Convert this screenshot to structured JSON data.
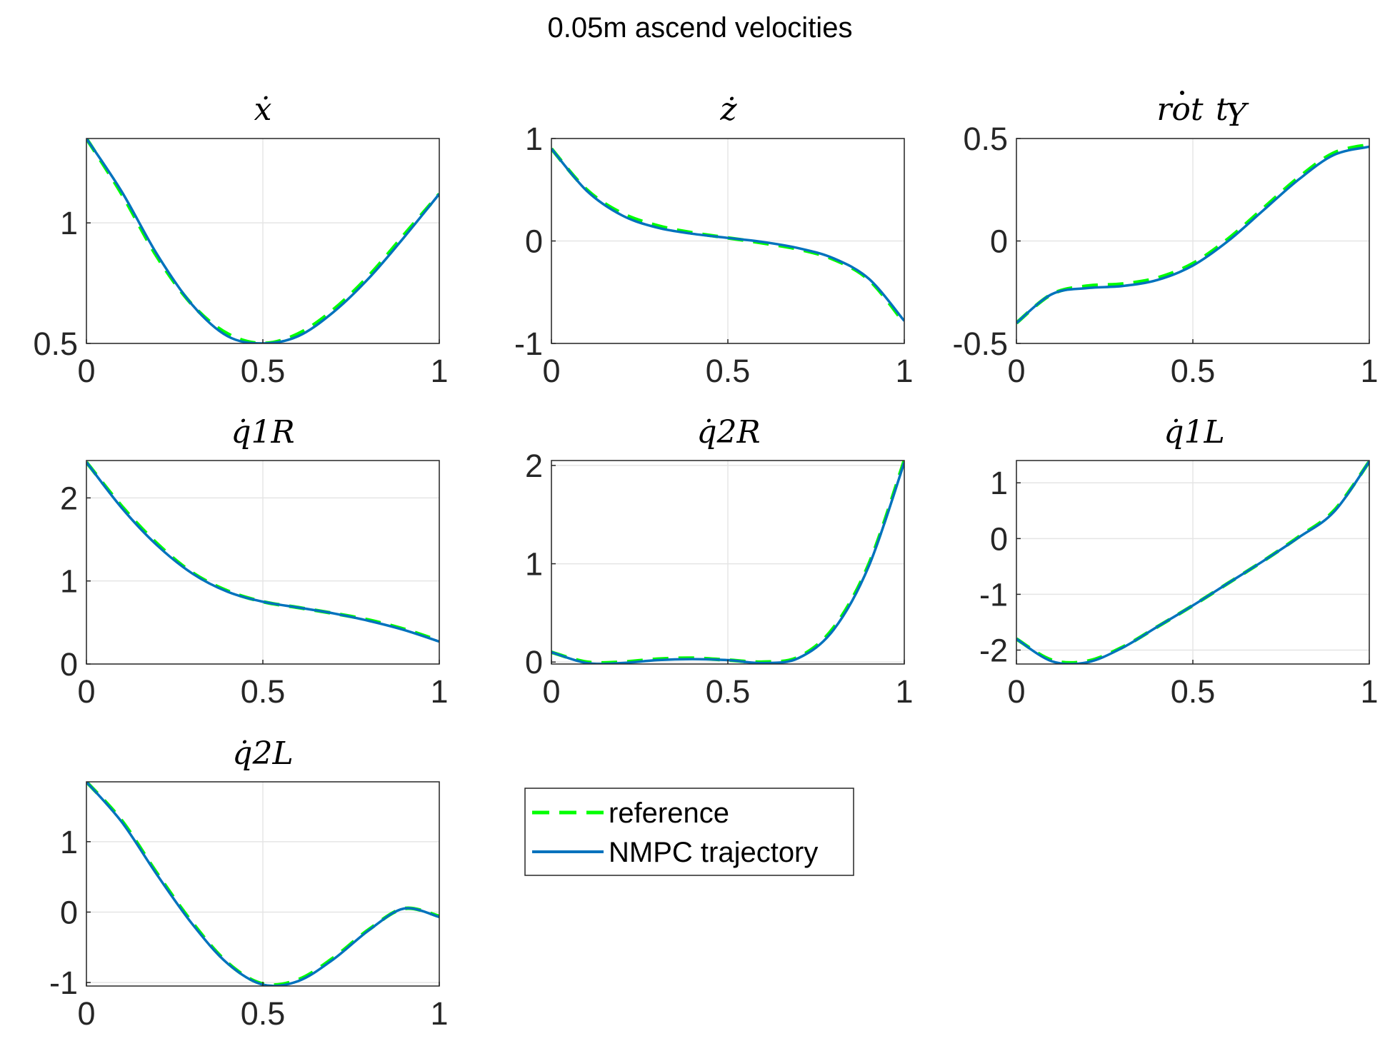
{
  "figure": {
    "suptitle": "0.05m ascend velocities",
    "legend": {
      "placement": "below-middle",
      "entries": [
        "reference",
        "NMPC trajectory"
      ]
    },
    "colors": {
      "reference": "#00ff00",
      "nmpc": "#0072bd",
      "grid": "#e5e5e5",
      "axis": "#262626"
    }
  },
  "chart_data": [
    {
      "type": "line",
      "title": "ẋ",
      "xlim": [
        0,
        1
      ],
      "ylim": [
        0.5,
        1.35
      ],
      "grid": true,
      "xticks": [
        "0",
        "0.5",
        "1"
      ],
      "yticks": [
        "0.5",
        "1"
      ],
      "x": [
        0,
        0.1,
        0.2,
        0.3,
        0.4,
        0.5,
        0.6,
        0.7,
        0.8,
        0.9,
        1.0
      ],
      "series": [
        {
          "name": "reference",
          "values": [
            1.35,
            1.12,
            0.86,
            0.66,
            0.54,
            0.5,
            0.54,
            0.64,
            0.78,
            0.95,
            1.12
          ]
        },
        {
          "name": "NMPC trajectory",
          "values": [
            1.35,
            1.13,
            0.87,
            0.66,
            0.53,
            0.5,
            0.53,
            0.63,
            0.77,
            0.94,
            1.12
          ]
        }
      ]
    },
    {
      "type": "line",
      "title": "ż",
      "xlim": [
        0,
        1
      ],
      "ylim": [
        -1,
        1
      ],
      "grid": true,
      "xticks": [
        "0",
        "0.5",
        "1"
      ],
      "yticks": [
        "-1",
        "0",
        "1"
      ],
      "x": [
        0,
        0.1,
        0.2,
        0.3,
        0.4,
        0.5,
        0.6,
        0.7,
        0.8,
        0.9,
        1.0
      ],
      "series": [
        {
          "name": "reference",
          "values": [
            0.9,
            0.5,
            0.27,
            0.15,
            0.08,
            0.03,
            -0.02,
            -0.08,
            -0.18,
            -0.38,
            -0.8
          ]
        },
        {
          "name": "NMPC trajectory",
          "values": [
            0.9,
            0.49,
            0.25,
            0.13,
            0.07,
            0.03,
            -0.01,
            -0.07,
            -0.17,
            -0.37,
            -0.78
          ]
        }
      ]
    },
    {
      "type": "line",
      "title": "rot",
      "xlim": [
        0,
        1
      ],
      "ylim": [
        -0.5,
        0.5
      ],
      "grid": true,
      "xticks": [
        "0",
        "0.5",
        "1"
      ],
      "yticks": [
        "-0.5",
        "0",
        "0.5"
      ],
      "x": [
        0,
        0.1,
        0.2,
        0.3,
        0.4,
        0.5,
        0.6,
        0.7,
        0.8,
        0.9,
        1.0
      ],
      "series": [
        {
          "name": "reference",
          "values": [
            -0.4,
            -0.26,
            -0.22,
            -0.21,
            -0.18,
            -0.11,
            0.01,
            0.16,
            0.31,
            0.43,
            0.47
          ]
        },
        {
          "name": "NMPC trajectory",
          "values": [
            -0.4,
            -0.26,
            -0.23,
            -0.22,
            -0.19,
            -0.12,
            0.0,
            0.15,
            0.3,
            0.42,
            0.46
          ]
        }
      ]
    },
    {
      "type": "line",
      "title": "q̇1R",
      "xlim": [
        0,
        1
      ],
      "ylim": [
        0,
        2.45
      ],
      "grid": true,
      "xticks": [
        "0",
        "0.5",
        "1"
      ],
      "yticks": [
        "0",
        "1",
        "2"
      ],
      "x": [
        0,
        0.1,
        0.2,
        0.3,
        0.4,
        0.5,
        0.6,
        0.7,
        0.8,
        0.9,
        1.0
      ],
      "series": [
        {
          "name": "reference",
          "values": [
            2.43,
            1.9,
            1.45,
            1.1,
            0.88,
            0.75,
            0.68,
            0.61,
            0.53,
            0.42,
            0.28
          ]
        },
        {
          "name": "NMPC trajectory",
          "values": [
            2.43,
            1.88,
            1.43,
            1.09,
            0.87,
            0.75,
            0.68,
            0.61,
            0.52,
            0.41,
            0.27
          ]
        }
      ]
    },
    {
      "type": "line",
      "title": "q̇2R",
      "xlim": [
        0,
        1
      ],
      "ylim": [
        -0.02,
        2.05
      ],
      "grid": true,
      "xticks": [
        "0",
        "0.5",
        "1"
      ],
      "yticks": [
        "0",
        "1",
        "2"
      ],
      "x": [
        0,
        0.1,
        0.2,
        0.3,
        0.4,
        0.5,
        0.6,
        0.7,
        0.8,
        0.9,
        1.0
      ],
      "series": [
        {
          "name": "reference",
          "values": [
            0.1,
            0.0,
            0.0,
            0.03,
            0.04,
            0.02,
            0.0,
            0.05,
            0.35,
            1.0,
            2.05
          ]
        },
        {
          "name": "NMPC trajectory",
          "values": [
            0.1,
            -0.01,
            -0.01,
            0.02,
            0.03,
            0.02,
            -0.01,
            0.04,
            0.33,
            0.98,
            2.03
          ]
        }
      ]
    },
    {
      "type": "line",
      "title": "q̇1L",
      "xlim": [
        0,
        1
      ],
      "ylim": [
        -2.25,
        1.4
      ],
      "grid": true,
      "xticks": [
        "0",
        "0.5",
        "1"
      ],
      "yticks": [
        "-2",
        "-1",
        "0",
        "1"
      ],
      "x": [
        0,
        0.1,
        0.2,
        0.3,
        0.4,
        0.5,
        0.6,
        0.7,
        0.8,
        0.9,
        1.0
      ],
      "series": [
        {
          "name": "reference",
          "values": [
            -1.8,
            -2.18,
            -2.2,
            -1.95,
            -1.58,
            -1.2,
            -0.8,
            -0.4,
            0.03,
            0.5,
            1.38
          ]
        },
        {
          "name": "NMPC trajectory",
          "values": [
            -1.8,
            -2.2,
            -2.22,
            -1.96,
            -1.58,
            -1.2,
            -0.8,
            -0.4,
            0.02,
            0.48,
            1.38
          ]
        }
      ]
    },
    {
      "type": "line",
      "title": "q̇2L",
      "xlim": [
        0,
        1
      ],
      "ylim": [
        -1.05,
        1.85
      ],
      "grid": true,
      "xticks": [
        "0",
        "0.5",
        "1"
      ],
      "yticks": [
        "-1",
        "0",
        "1"
      ],
      "x": [
        0,
        0.1,
        0.2,
        0.3,
        0.4,
        0.5,
        0.6,
        0.7,
        0.8,
        0.9,
        1.0
      ],
      "series": [
        {
          "name": "reference",
          "values": [
            1.85,
            1.3,
            0.55,
            -0.15,
            -0.72,
            -1.02,
            -0.96,
            -0.65,
            -0.25,
            0.05,
            -0.06
          ]
        },
        {
          "name": "NMPC trajectory",
          "values": [
            1.85,
            1.28,
            0.53,
            -0.17,
            -0.73,
            -1.03,
            -0.98,
            -0.67,
            -0.26,
            0.05,
            -0.07
          ]
        }
      ]
    }
  ]
}
